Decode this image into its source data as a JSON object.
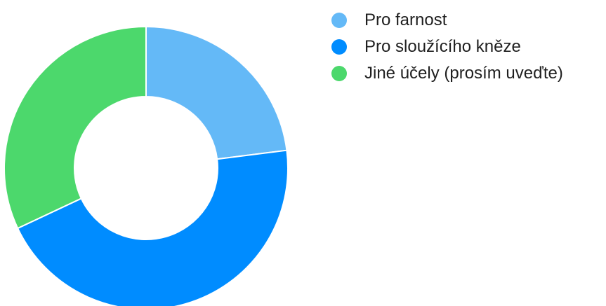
{
  "chart_data": {
    "type": "pie",
    "variant": "donut",
    "title": "",
    "categories": [
      "Pro farnost",
      "Pro sloužícího kněze",
      "Jiné účely (prosím uveďte)"
    ],
    "values": [
      23,
      45,
      32
    ],
    "colors": [
      "#64b9f7",
      "#008cff",
      "#4cd86c"
    ],
    "legend": {
      "position": "top-right",
      "entries": [
        "Pro farnost",
        "Pro sloužícího kněze",
        "Jiné účely (prosím uveďte)"
      ]
    },
    "start_angle_deg": 0,
    "direction": "clockwise"
  }
}
